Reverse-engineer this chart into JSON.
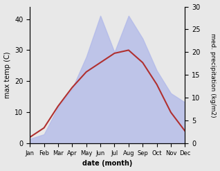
{
  "months": [
    "Jan",
    "Feb",
    "Mar",
    "Apr",
    "May",
    "Jun",
    "Jul",
    "Aug",
    "Sep",
    "Oct",
    "Nov",
    "Dec"
  ],
  "temperature": [
    2,
    5,
    12,
    18,
    23,
    26,
    29,
    30,
    26,
    19,
    10,
    4
  ],
  "precipitation": [
    1,
    2,
    8,
    12,
    19,
    28,
    20,
    28,
    23,
    16,
    11,
    9
  ],
  "temp_color": "#b03030",
  "precip_fill_color": "#b0b8e8",
  "precip_alpha": 0.75,
  "xlabel": "date (month)",
  "ylabel_left": "max temp (C)",
  "ylabel_right": "med. precipitation (kg/m2)",
  "ylim_left": [
    0,
    44
  ],
  "ylim_right": [
    0,
    30
  ],
  "yticks_left": [
    0,
    10,
    20,
    30,
    40
  ],
  "yticks_right": [
    0,
    5,
    10,
    15,
    20,
    25,
    30
  ],
  "bg_color": "#e8e8e8",
  "plot_bg_color": "#e8e8e8"
}
